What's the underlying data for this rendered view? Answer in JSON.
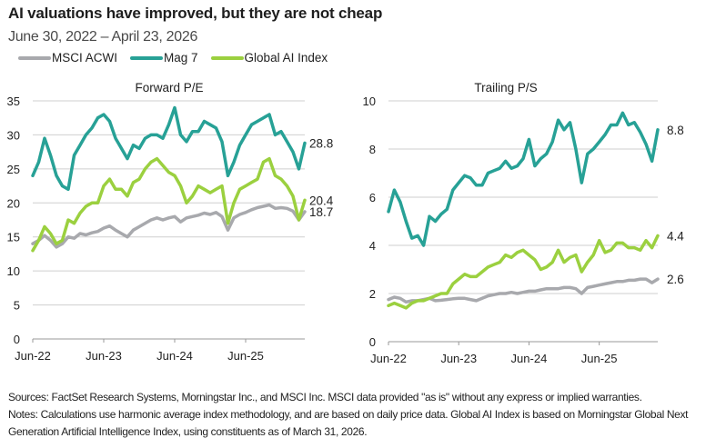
{
  "header": {
    "title": "AI valuations have improved, but they are not cheap",
    "subtitle": "June 30, 2022 – April 23, 2026"
  },
  "legend": [
    {
      "name": "MSCI ACWI",
      "color": "#a8a9ad"
    },
    {
      "name": "Mag 7",
      "color": "#27a196"
    },
    {
      "name": "Global AI Index",
      "color": "#9bd03f"
    }
  ],
  "notes": {
    "sources": "Sources: FactSet Research Systems, Morningstar Inc., and MSCI Inc. MSCI data provided \"as is\" without any express or implied warranties.",
    "notes": "Notes: Calculations use harmonic average index methodology, and are based on daily price data. Global AI Index is based on Morningstar Global Next Generation Artificial Intelligence Index, using constituents as of March 31, 2026."
  },
  "chart_data": [
    {
      "type": "line",
      "title": "Forward P/E",
      "xlabel": "",
      "ylabel": "",
      "ylim": [
        0,
        35
      ],
      "yticks": [
        0,
        5,
        10,
        15,
        20,
        25,
        30,
        35
      ],
      "xticks": [
        {
          "x": "2022-06",
          "label": "Jun-22"
        },
        {
          "x": "2023-06",
          "label": "Jun-23"
        },
        {
          "x": "2024-06",
          "label": "Jun-24"
        },
        {
          "x": "2025-06",
          "label": "Jun-25"
        }
      ],
      "grid": true,
      "x": [
        "2022-06",
        "2022-07",
        "2022-08",
        "2022-09",
        "2022-10",
        "2022-11",
        "2022-12",
        "2023-01",
        "2023-02",
        "2023-03",
        "2023-04",
        "2023-05",
        "2023-06",
        "2023-07",
        "2023-08",
        "2023-09",
        "2023-10",
        "2023-11",
        "2023-12",
        "2024-01",
        "2024-02",
        "2024-03",
        "2024-04",
        "2024-05",
        "2024-06",
        "2024-07",
        "2024-08",
        "2024-09",
        "2024-10",
        "2024-11",
        "2024-12",
        "2025-01",
        "2025-02",
        "2025-03",
        "2025-04",
        "2025-05",
        "2025-06",
        "2025-07",
        "2025-08",
        "2025-09",
        "2025-10",
        "2025-11",
        "2025-12",
        "2026-01",
        "2026-02",
        "2026-03",
        "2026-04"
      ],
      "series": [
        {
          "name": "MSCI ACWI",
          "color": "#a8a9ad",
          "end_label": "18.7",
          "values": [
            14,
            14.5,
            15.2,
            14.5,
            13.5,
            14,
            15,
            14.8,
            15.5,
            15.3,
            15.6,
            15.8,
            16.3,
            16.6,
            16,
            15.5,
            15,
            16,
            16.5,
            17,
            17.5,
            17.8,
            17.5,
            17.8,
            18,
            17.2,
            17.8,
            18,
            18.2,
            18.5,
            18.3,
            18.6,
            18,
            16,
            17.8,
            18.3,
            18.6,
            19,
            19.3,
            19.5,
            19.7,
            19.2,
            19.3,
            19.2,
            18.8,
            17.5,
            18.7
          ]
        },
        {
          "name": "Mag 7",
          "color": "#27a196",
          "end_label": "28.8",
          "values": [
            24,
            26,
            29.5,
            27,
            24,
            22.5,
            22,
            27,
            28.5,
            30,
            31,
            32.5,
            33,
            32,
            29.5,
            28,
            26.5,
            28.5,
            28,
            29.5,
            30,
            30,
            29.5,
            31.5,
            34,
            30,
            29,
            30.5,
            30.5,
            32,
            31.5,
            31,
            29,
            24,
            26,
            28.5,
            30,
            31.5,
            32,
            32.5,
            33,
            30,
            30.5,
            29,
            27.5,
            25,
            28.8
          ]
        },
        {
          "name": "Global AI Index",
          "color": "#9bd03f",
          "end_label": "20.4",
          "values": [
            13,
            14.5,
            16.5,
            15.5,
            14,
            14.5,
            17.5,
            17,
            18.5,
            19.5,
            20,
            20,
            22.5,
            23.5,
            22,
            22,
            21,
            23,
            23.5,
            25,
            26,
            26.5,
            25.5,
            24.5,
            24,
            22.5,
            20,
            21,
            22.5,
            22,
            21.5,
            22,
            22.5,
            17,
            20,
            22,
            22.5,
            23,
            23.5,
            26,
            26.5,
            24,
            23.5,
            22.5,
            21,
            17.5,
            20.4
          ]
        }
      ]
    },
    {
      "type": "line",
      "title": "Trailing P/S",
      "xlabel": "",
      "ylabel": "",
      "ylim": [
        0,
        10
      ],
      "yticks": [
        0,
        2,
        4,
        6,
        8,
        10
      ],
      "xticks": [
        {
          "x": "2022-06",
          "label": "Jun-22"
        },
        {
          "x": "2023-06",
          "label": "Jun-23"
        },
        {
          "x": "2024-06",
          "label": "Jun-24"
        },
        {
          "x": "2025-06",
          "label": "Jun-25"
        }
      ],
      "grid": true,
      "x": [
        "2022-06",
        "2022-07",
        "2022-08",
        "2022-09",
        "2022-10",
        "2022-11",
        "2022-12",
        "2023-01",
        "2023-02",
        "2023-03",
        "2023-04",
        "2023-05",
        "2023-06",
        "2023-07",
        "2023-08",
        "2023-09",
        "2023-10",
        "2023-11",
        "2023-12",
        "2024-01",
        "2024-02",
        "2024-03",
        "2024-04",
        "2024-05",
        "2024-06",
        "2024-07",
        "2024-08",
        "2024-09",
        "2024-10",
        "2024-11",
        "2024-12",
        "2025-01",
        "2025-02",
        "2025-03",
        "2025-04",
        "2025-05",
        "2025-06",
        "2025-07",
        "2025-08",
        "2025-09",
        "2025-10",
        "2025-11",
        "2025-12",
        "2026-01",
        "2026-02",
        "2026-03",
        "2026-04"
      ],
      "series": [
        {
          "name": "MSCI ACWI",
          "color": "#a8a9ad",
          "end_label": "2.6",
          "values": [
            1.75,
            1.85,
            1.8,
            1.65,
            1.7,
            1.7,
            1.75,
            1.8,
            1.7,
            1.72,
            1.75,
            1.78,
            1.8,
            1.8,
            1.75,
            1.7,
            1.8,
            1.9,
            1.95,
            2,
            2,
            2.05,
            2,
            2.05,
            2.1,
            2.1,
            2.15,
            2.2,
            2.2,
            2.2,
            2.25,
            2.25,
            2.2,
            2,
            2.25,
            2.3,
            2.35,
            2.4,
            2.45,
            2.5,
            2.5,
            2.55,
            2.55,
            2.6,
            2.6,
            2.45,
            2.6
          ]
        },
        {
          "name": "Mag 7",
          "color": "#27a196",
          "end_label": "8.8",
          "values": [
            5.4,
            6.3,
            5.8,
            5,
            4.3,
            4.4,
            4,
            5.2,
            5,
            5.3,
            5.5,
            6.3,
            6.6,
            6.9,
            6.8,
            6.5,
            6.5,
            7,
            7.1,
            7.2,
            7.5,
            7.2,
            7.3,
            7.6,
            8.4,
            7.3,
            7.6,
            7.8,
            8.3,
            9.2,
            8.8,
            9.1,
            8,
            6.6,
            7.8,
            8,
            8.3,
            8.6,
            9,
            9,
            9.5,
            9,
            9.1,
            8.7,
            8.2,
            7.5,
            8.8
          ]
        },
        {
          "name": "Global AI Index",
          "color": "#9bd03f",
          "end_label": "4.4",
          "values": [
            1.5,
            1.6,
            1.5,
            1.4,
            1.6,
            1.7,
            1.7,
            1.8,
            1.9,
            2,
            2,
            2.4,
            2.6,
            2.8,
            2.7,
            2.7,
            2.9,
            3.1,
            3.2,
            3.3,
            3.6,
            3.5,
            3.7,
            3.8,
            3.6,
            3.4,
            3,
            3.1,
            3.3,
            3.8,
            3.3,
            3.5,
            3.6,
            2.9,
            3.3,
            3.6,
            4.2,
            3.7,
            3.8,
            4.1,
            4.1,
            3.9,
            3.9,
            3.8,
            4.2,
            3.9,
            4.4
          ]
        }
      ]
    }
  ]
}
